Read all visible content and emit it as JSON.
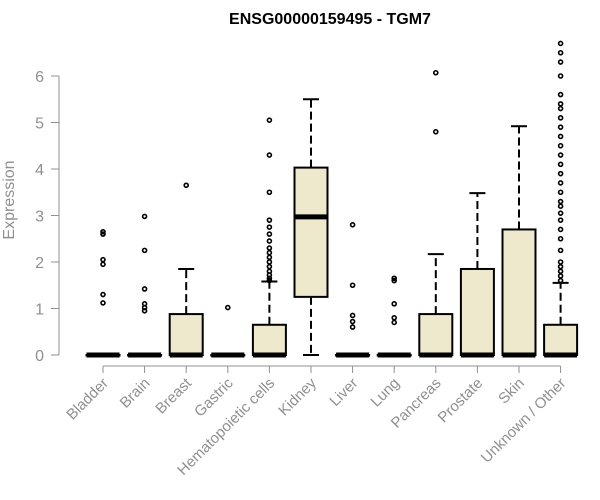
{
  "chart_data": {
    "type": "box",
    "title": "ENSG00000159495 - TGM7",
    "xlabel": "",
    "ylabel": "Expression",
    "ylim": [
      0,
      6.8
    ],
    "yticks": [
      "0",
      "1",
      "2",
      "3",
      "4",
      "5",
      "6"
    ],
    "grid": false,
    "legend": "none",
    "colors": {
      "box_fill": "#EEE8CD",
      "stroke": "#000000",
      "axis_text": "#909090",
      "title": "#000000"
    },
    "categories": [
      "Bladder",
      "Brain",
      "Breast",
      "Gastric",
      "Hematopoietic cells",
      "Kidney",
      "Liver",
      "Lung",
      "Pancreas",
      "Prostate",
      "Skin",
      "Unknown / Other"
    ],
    "boxes": [
      {
        "category": "Bladder",
        "min": 0,
        "q1": 0,
        "median": 0,
        "q3": 0,
        "max": 0,
        "outliers": [
          1.12,
          1.3,
          1.95,
          2.05,
          2.6,
          2.65
        ]
      },
      {
        "category": "Brain",
        "min": 0,
        "q1": 0,
        "median": 0,
        "q3": 0,
        "max": 0,
        "outliers": [
          0.95,
          1.02,
          1.1,
          1.42,
          2.25,
          2.98
        ]
      },
      {
        "category": "Breast",
        "min": 0,
        "q1": 0,
        "median": 0,
        "q3": 0.88,
        "max": 1.85,
        "outliers": [
          3.65
        ]
      },
      {
        "category": "Gastric",
        "min": 0,
        "q1": 0,
        "median": 0,
        "q3": 0,
        "max": 0,
        "outliers": [
          1.02
        ]
      },
      {
        "category": "Hematopoietic cells",
        "min": 0,
        "q1": 0,
        "median": 0,
        "q3": 0.65,
        "max": 1.58,
        "outliers": [
          1.6,
          1.65,
          1.72,
          1.8,
          1.9,
          2.0,
          2.1,
          2.2,
          2.3,
          2.45,
          2.6,
          2.75,
          2.9,
          3.5,
          4.3,
          5.05
        ]
      },
      {
        "category": "Kidney",
        "min": 0,
        "q1": 1.25,
        "median": 2.97,
        "q3": 4.03,
        "max": 5.5,
        "outliers": []
      },
      {
        "category": "Liver",
        "min": 0,
        "q1": 0,
        "median": 0,
        "q3": 0,
        "max": 0,
        "outliers": [
          0.6,
          0.72,
          0.85,
          1.5,
          2.8
        ]
      },
      {
        "category": "Lung",
        "min": 0,
        "q1": 0,
        "median": 0,
        "q3": 0,
        "max": 0,
        "outliers": [
          0.7,
          0.8,
          1.1,
          1.6,
          1.65
        ]
      },
      {
        "category": "Pancreas",
        "min": 0,
        "q1": 0,
        "median": 0,
        "q3": 0.88,
        "max": 2.17,
        "outliers": [
          4.8,
          6.07
        ]
      },
      {
        "category": "Prostate",
        "min": 0,
        "q1": 0,
        "median": 0,
        "q3": 1.85,
        "max": 3.48,
        "outliers": []
      },
      {
        "category": "Skin",
        "min": 0,
        "q1": 0,
        "median": 0,
        "q3": 2.7,
        "max": 4.92,
        "outliers": []
      },
      {
        "category": "Unknown / Other",
        "min": 0,
        "q1": 0,
        "median": 0,
        "q3": 0.65,
        "max": 1.55,
        "outliers": [
          1.6,
          1.7,
          1.8,
          1.9,
          2.0,
          2.25,
          2.5,
          2.7,
          2.9,
          3.05,
          3.2,
          3.3,
          3.5,
          3.7,
          3.9,
          4.1,
          4.3,
          4.5,
          4.7,
          4.9,
          5.1,
          5.3,
          5.4,
          5.6,
          6.0,
          6.3,
          6.5,
          6.7
        ]
      }
    ]
  }
}
